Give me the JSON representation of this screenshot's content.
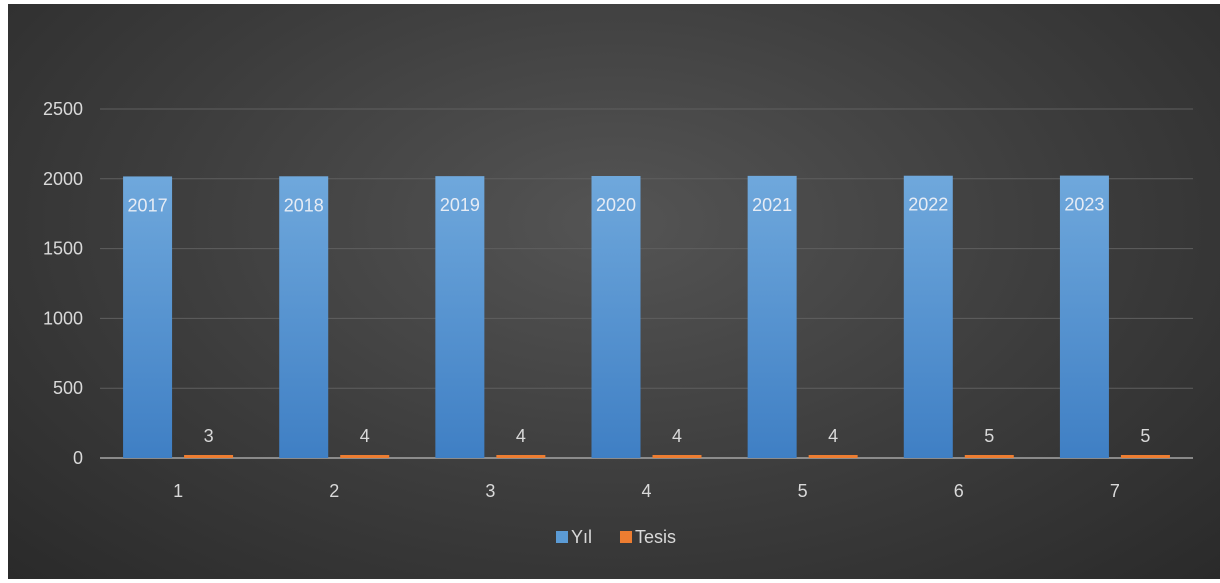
{
  "chart_data": {
    "type": "bar",
    "title": "",
    "xlabel": "",
    "ylabel": "",
    "categories": [
      "1",
      "2",
      "3",
      "4",
      "5",
      "6",
      "7"
    ],
    "ylim": [
      0,
      2500
    ],
    "yticks": [
      0,
      500,
      1000,
      1500,
      2000,
      2500
    ],
    "grid": true,
    "legend_position": "bottom",
    "series": [
      {
        "name": "Yıl",
        "color": "#5b9bd5",
        "values": [
          2017,
          2018,
          2019,
          2020,
          2021,
          2022,
          2023
        ],
        "labels": [
          "2017",
          "2018",
          "2019",
          "2020",
          "2021",
          "2022",
          "2023"
        ]
      },
      {
        "name": "Tesis",
        "color": "#ed7d31",
        "values": [
          3,
          4,
          4,
          4,
          4,
          5,
          5
        ],
        "labels": [
          "3",
          "4",
          "4",
          "4",
          "4",
          "5",
          "5"
        ]
      }
    ]
  }
}
